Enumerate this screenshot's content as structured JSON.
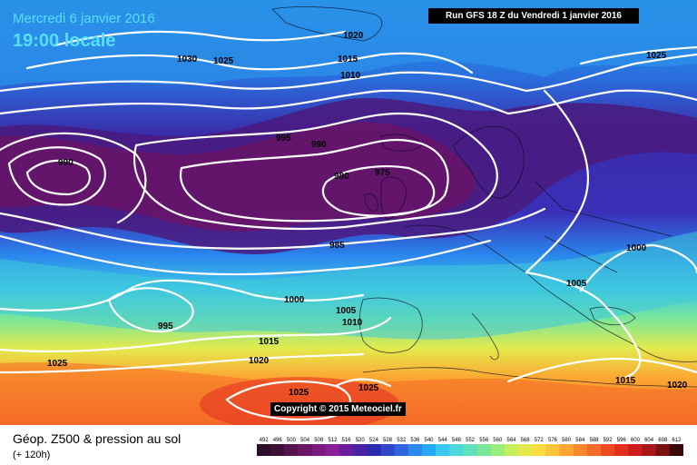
{
  "header": {
    "date_line": "Mercredi 6 janvier 2016",
    "time_line": "19:00 locale",
    "run_banner": "Run GFS 18 Z du Vendredi 1 janvier 2016"
  },
  "copyright": "Copyright © 2015 Meteociel.fr",
  "footer": {
    "title": "Géop. Z500 & pression au sol",
    "subtitle": "(+ 120h)"
  },
  "color_scale": {
    "ticks": [
      "492",
      "496",
      "500",
      "504",
      "508",
      "512",
      "516",
      "520",
      "524",
      "528",
      "532",
      "536",
      "540",
      "544",
      "548",
      "552",
      "556",
      "560",
      "564",
      "568",
      "572",
      "576",
      "580",
      "584",
      "588",
      "592",
      "596",
      "600",
      "604",
      "608",
      "612"
    ],
    "colors": [
      "#2c0d2a",
      "#3d1038",
      "#551350",
      "#6a1465",
      "#7b1a80",
      "#8b1f9a",
      "#6a1e9e",
      "#4a22a6",
      "#2a2aac",
      "#2f47c8",
      "#2f63e0",
      "#2a88ee",
      "#25aaf4",
      "#38c8f0",
      "#4ad8d8",
      "#5ee0b8",
      "#7ae69a",
      "#9cec7c",
      "#c4ee5c",
      "#e4ea4c",
      "#f8dc40",
      "#fcc43a",
      "#fca632",
      "#fa882c",
      "#f46a26",
      "#ee4a22",
      "#e42e20",
      "#cc1c1c",
      "#a81818",
      "#7a1010",
      "#3a0808"
    ]
  },
  "isobar_labels": [
    "1030",
    "1025",
    "1020",
    "1015",
    "1010",
    "1025",
    "995",
    "990",
    "990",
    "980",
    "975",
    "985",
    "1000",
    "1005",
    "1010",
    "995",
    "1000",
    "1015",
    "1020",
    "1025",
    "1025",
    "1025",
    "1005",
    "1015",
    "1020"
  ]
}
